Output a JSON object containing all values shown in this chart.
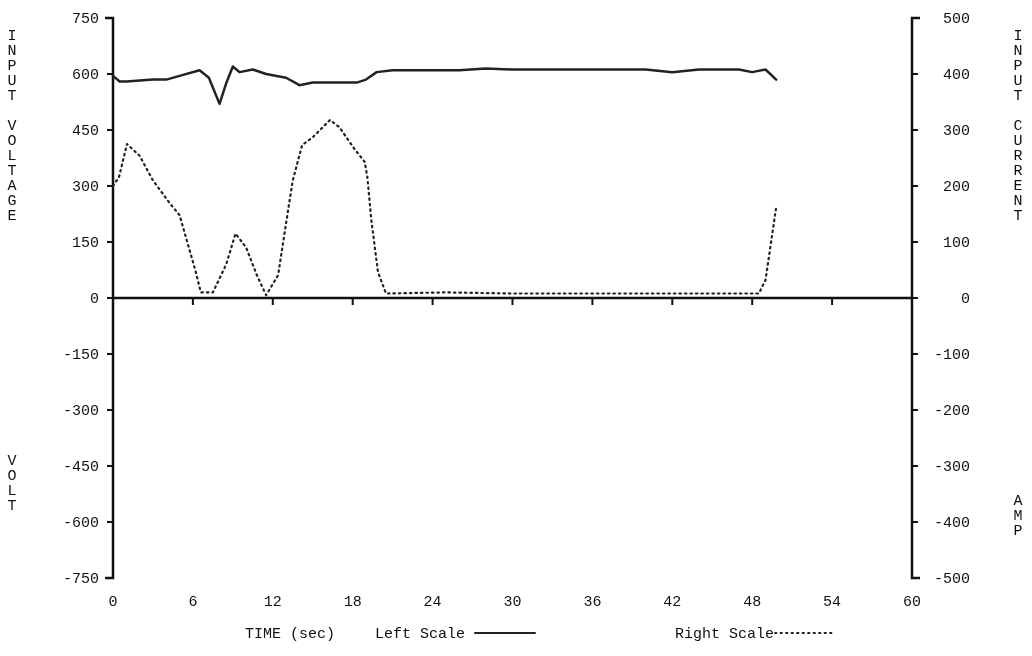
{
  "chart_data": {
    "type": "line",
    "xlabel": "TIME (sec)",
    "ylabel": "INPUT VOLTAGE",
    "y2label": "INPUT CURRENT",
    "annotations": [
      "VOLT",
      "AMP"
    ],
    "xlim": [
      0,
      60
    ],
    "xticks": [
      0,
      6,
      12,
      18,
      24,
      30,
      36,
      42,
      48,
      54,
      60
    ],
    "ylim": [
      -750,
      750
    ],
    "yticks": [
      -750,
      -600,
      -450,
      -300,
      -150,
      0,
      150,
      300,
      450,
      600,
      750
    ],
    "y2lim": [
      -500,
      500
    ],
    "y2ticks": [
      -500,
      -400,
      -300,
      -200,
      -100,
      0,
      100,
      200,
      300,
      400,
      500
    ],
    "legend": "bottom",
    "series": [
      {
        "name": "Left Scale",
        "color": "#222222",
        "line_style": "solid",
        "x": [
          0,
          0.5,
          1,
          3,
          4,
          5,
          6.5,
          7.2,
          8,
          8.5,
          9,
          9.5,
          10.5,
          11.5,
          13,
          14,
          15,
          18.3,
          19,
          19.8,
          21,
          26,
          28,
          30,
          35,
          40,
          42,
          44,
          47,
          48,
          49,
          49.8
        ],
        "values": [
          595,
          580,
          580,
          585,
          585,
          595,
          610,
          590,
          520,
          575,
          620,
          605,
          612,
          600,
          590,
          570,
          577,
          577,
          585,
          605,
          610,
          610,
          615,
          612,
          612,
          612,
          605,
          612,
          612,
          605,
          612,
          585
        ]
      },
      {
        "name": "Right Scale",
        "color": "#222222",
        "line_style": "dotted",
        "axis": "y2",
        "x": [
          0,
          0.45,
          1.05,
          2,
          3,
          4.3,
          5,
          6.2,
          6.6,
          7.5,
          8.5,
          9.2,
          10,
          10.8,
          11.5,
          12.4,
          13,
          13.5,
          14.2,
          15,
          16.3,
          17,
          18.2,
          18.9,
          19.1,
          19.4,
          19.9,
          20.5,
          25,
          30,
          40,
          48.5,
          49,
          49.8
        ],
        "values": [
          200,
          216,
          275,
          254,
          210,
          168,
          148,
          48,
          10,
          10,
          60,
          115,
          90,
          41,
          5,
          41,
          134,
          210,
          273,
          287,
          318,
          305,
          264,
          243,
          216,
          139,
          46,
          8,
          10,
          8,
          8,
          8,
          32,
          162
        ]
      }
    ]
  }
}
